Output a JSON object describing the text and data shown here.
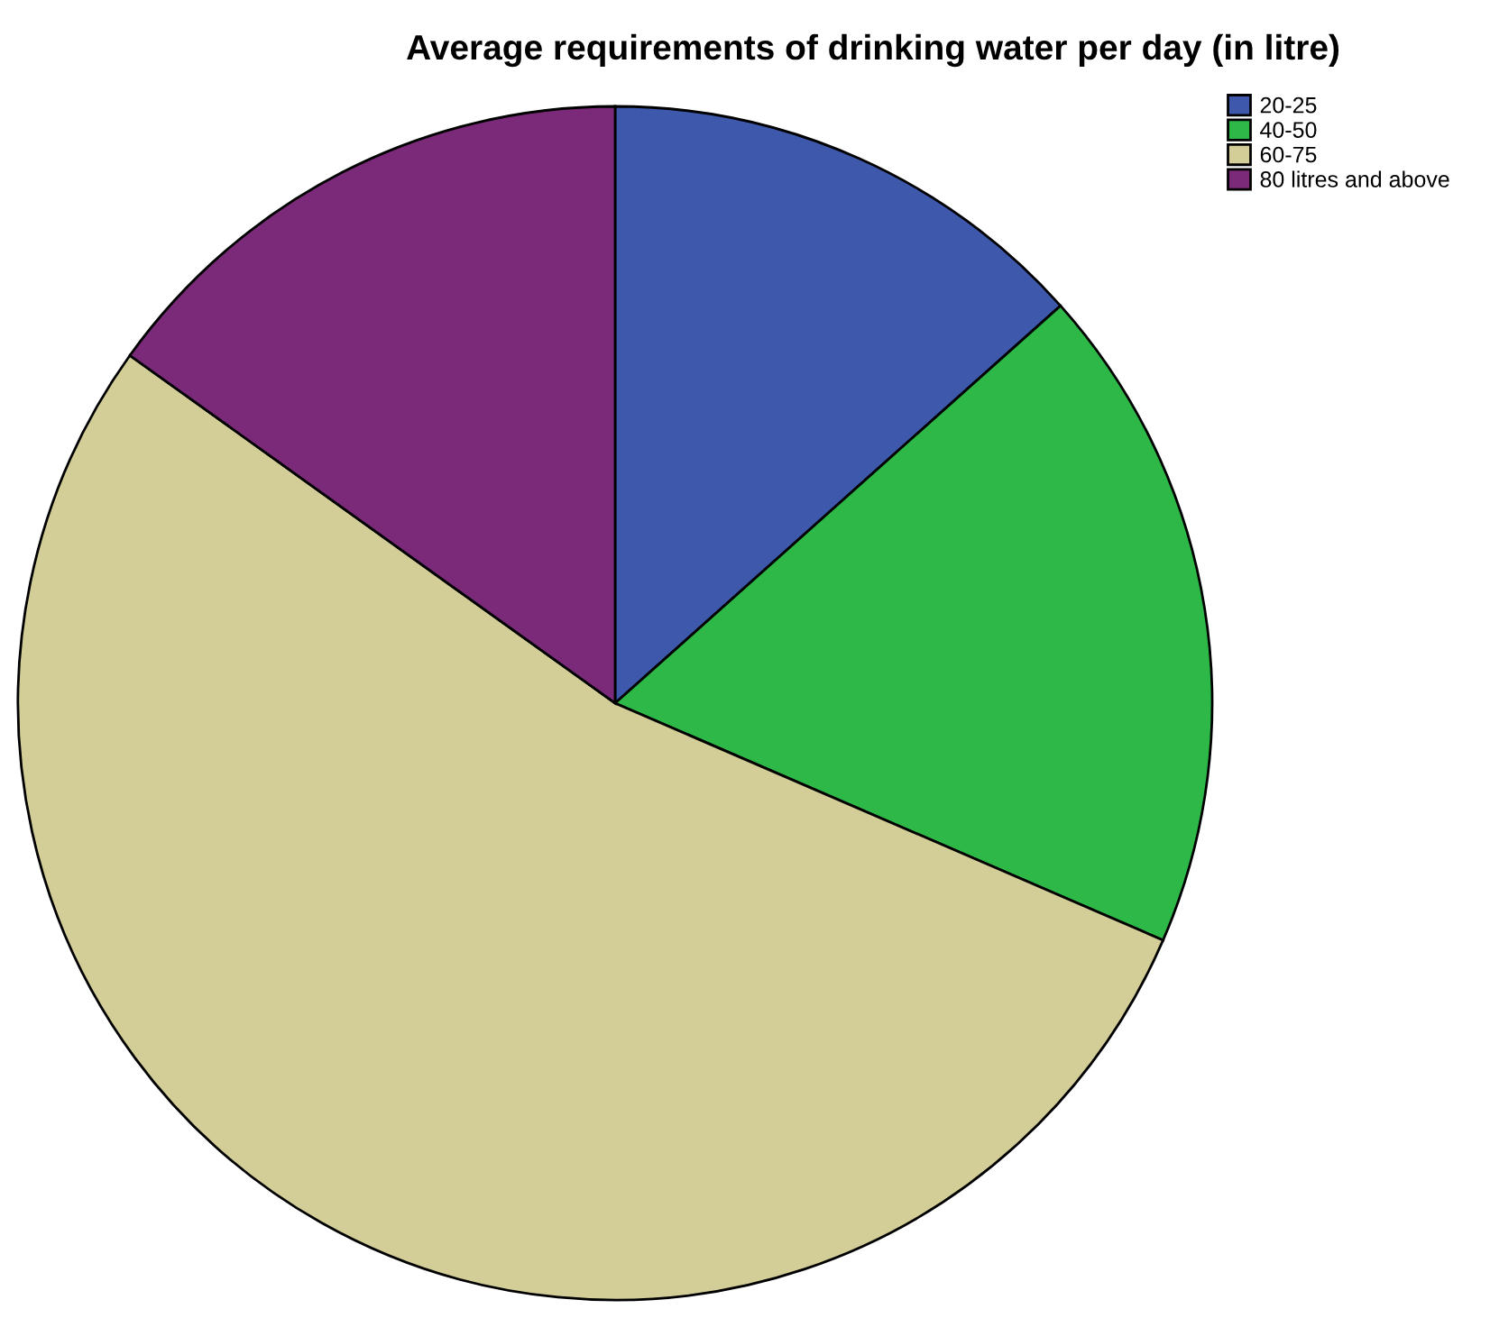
{
  "chart_data": {
    "type": "pie",
    "title": "Average requirements of drinking water per day (in litre)",
    "categories": [
      "20-25",
      "40-50",
      "60-75",
      "80 litres and above"
    ],
    "values": [
      13.4,
      18.1,
      53.4,
      15.1
    ],
    "colors": [
      "#3e58ac",
      "#2eb848",
      "#d3ce97",
      "#7b2a7a"
    ],
    "legend": "top right"
  }
}
